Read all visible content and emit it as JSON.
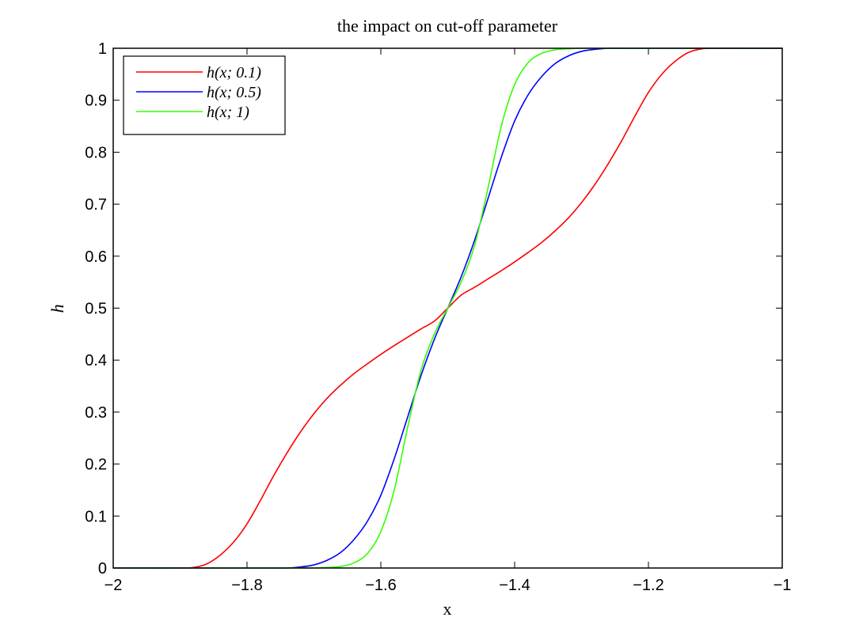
{
  "chart_data": {
    "type": "line",
    "title": "the impact on cut-off parameter",
    "xlabel": "x",
    "ylabel": "h",
    "xlim": [
      -2,
      -1
    ],
    "ylim": [
      0,
      1
    ],
    "x_ticks": [
      "−2",
      "−1.8",
      "−1.6",
      "−1.4",
      "−1.2",
      "−1"
    ],
    "y_ticks": [
      "0",
      "0.1",
      "0.2",
      "0.3",
      "0.4",
      "0.5",
      "0.6",
      "0.7",
      "0.8",
      "0.9",
      "1"
    ],
    "grid": false,
    "legend_position": "top-left",
    "x": [
      -2.0,
      -1.95,
      -1.9,
      -1.88,
      -1.86,
      -1.84,
      -1.82,
      -1.8,
      -1.78,
      -1.76,
      -1.74,
      -1.72,
      -1.7,
      -1.68,
      -1.66,
      -1.64,
      -1.62,
      -1.6,
      -1.58,
      -1.56,
      -1.54,
      -1.52,
      -1.5,
      -1.48,
      -1.46,
      -1.44,
      -1.42,
      -1.4,
      -1.38,
      -1.36,
      -1.34,
      -1.32,
      -1.3,
      -1.28,
      -1.26,
      -1.24,
      -1.22,
      -1.2,
      -1.18,
      -1.16,
      -1.14,
      -1.12,
      -1.1,
      -1.05,
      -1.0
    ],
    "series": [
      {
        "name": "h(x; 0.1)",
        "color": "#ff0000",
        "values": [
          0.0,
          0.0,
          0.0,
          0.001,
          0.008,
          0.025,
          0.05,
          0.085,
          0.13,
          0.178,
          0.222,
          0.262,
          0.297,
          0.327,
          0.352,
          0.374,
          0.393,
          0.411,
          0.428,
          0.444,
          0.46,
          0.475,
          0.5,
          0.525,
          0.54,
          0.556,
          0.572,
          0.589,
          0.607,
          0.626,
          0.648,
          0.673,
          0.703,
          0.738,
          0.778,
          0.822,
          0.87,
          0.915,
          0.95,
          0.975,
          0.992,
          0.999,
          1.0,
          1.0,
          1.0
        ]
      },
      {
        "name": "h(x; 0.5)",
        "color": "#0000ff",
        "values": [
          0.0,
          0.0,
          0.0,
          0.0,
          0.0,
          0.0,
          0.0,
          0.0,
          0.0,
          0.0,
          0.0,
          0.002,
          0.006,
          0.015,
          0.03,
          0.055,
          0.09,
          0.14,
          0.21,
          0.29,
          0.37,
          0.44,
          0.5,
          0.56,
          0.63,
          0.71,
          0.79,
          0.86,
          0.91,
          0.945,
          0.97,
          0.985,
          0.994,
          0.998,
          1.0,
          1.0,
          1.0,
          1.0,
          1.0,
          1.0,
          1.0,
          1.0,
          1.0,
          1.0,
          1.0
        ]
      },
      {
        "name": "h(x; 1)",
        "color": "#33ff00",
        "values": [
          0.0,
          0.0,
          0.0,
          0.0,
          0.0,
          0.0,
          0.0,
          0.0,
          0.0,
          0.0,
          0.0,
          0.0,
          0.0,
          0.001,
          0.003,
          0.01,
          0.028,
          0.07,
          0.15,
          0.27,
          0.38,
          0.45,
          0.5,
          0.55,
          0.62,
          0.73,
          0.85,
          0.93,
          0.972,
          0.99,
          0.997,
          0.999,
          1.0,
          1.0,
          1.0,
          1.0,
          1.0,
          1.0,
          1.0,
          1.0,
          1.0,
          1.0,
          1.0,
          1.0,
          1.0
        ]
      }
    ]
  }
}
